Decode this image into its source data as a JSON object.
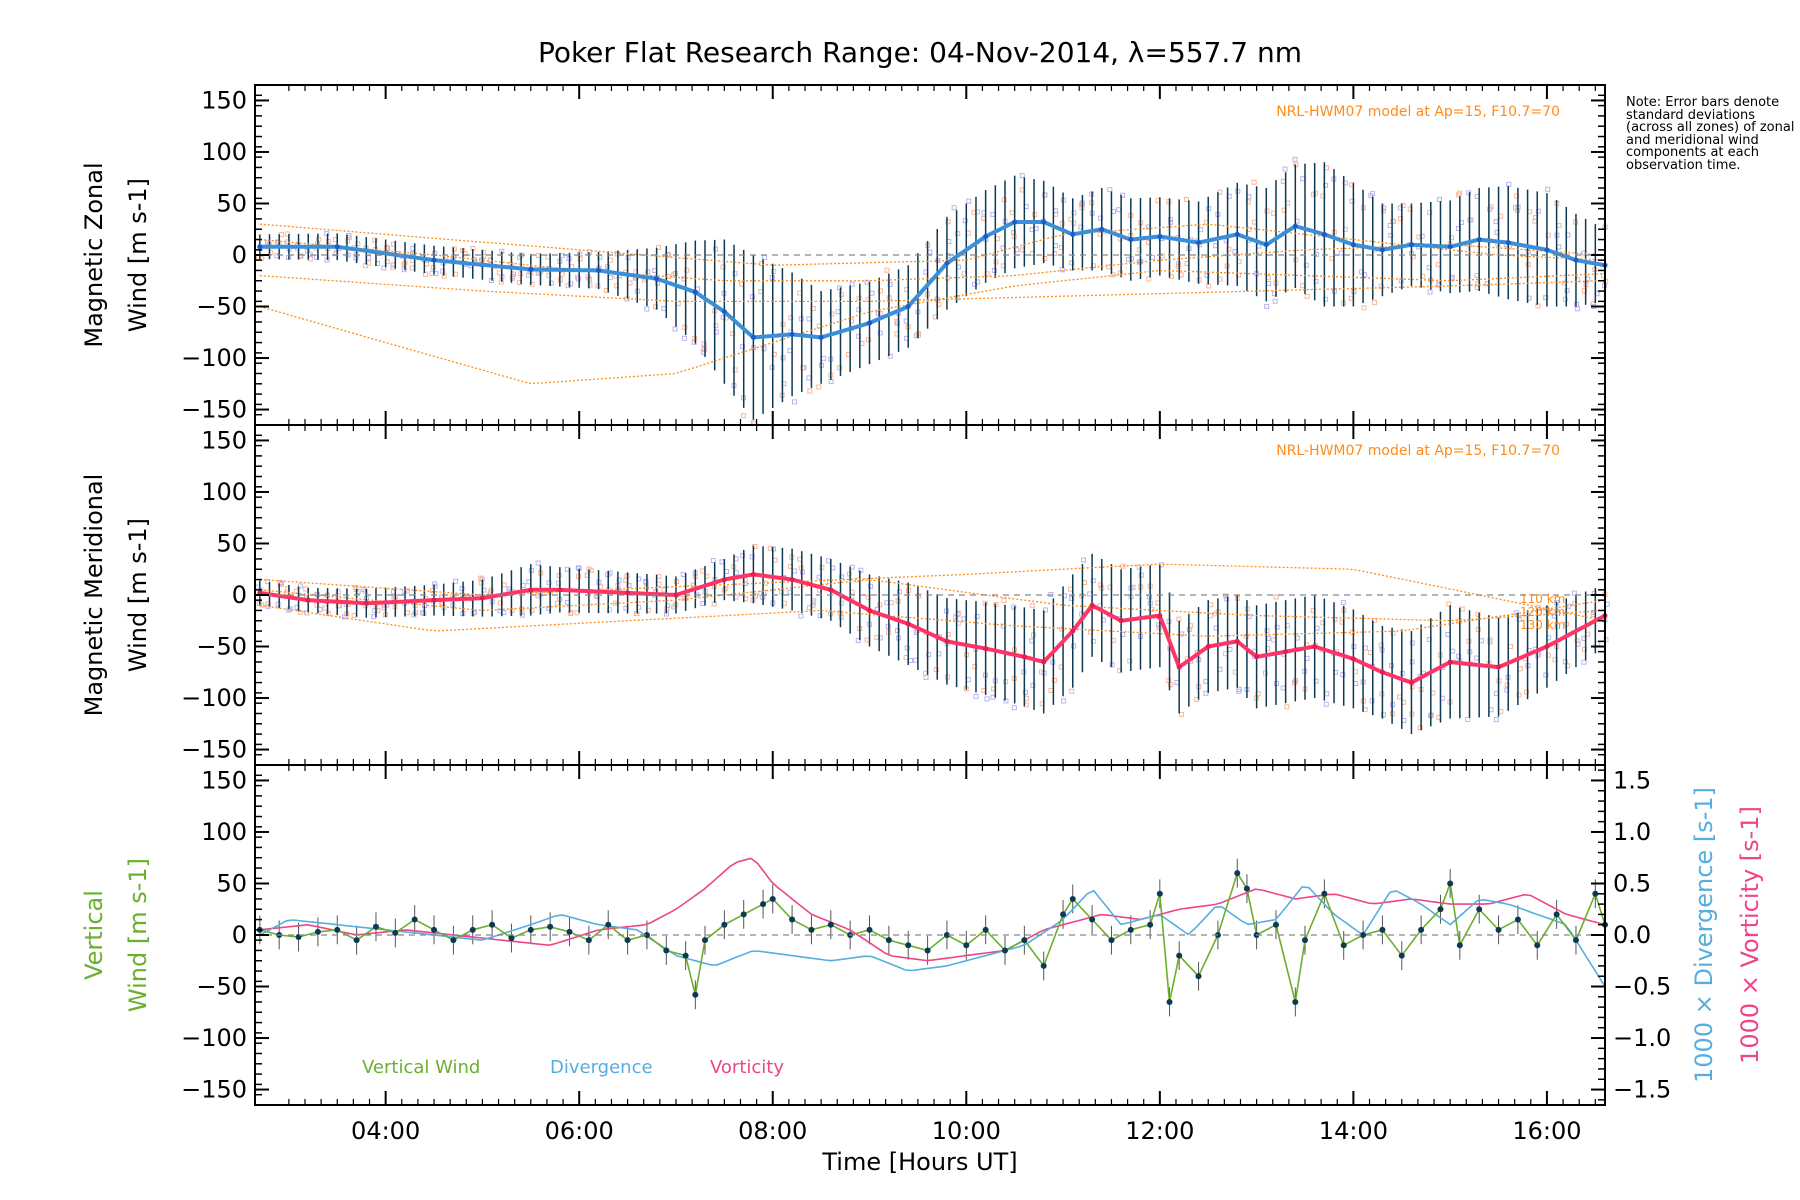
{
  "figure": {
    "title": "Poker Flat Research Range: 04-Nov-2014, λ=557.7 nm",
    "note": "Note: Error bars denote standard deviations (across all zones) of zonal and meridional wind components at each observation time.",
    "xlabel": "Time [Hours UT]",
    "x_ticks": [
      "04:00",
      "06:00",
      "08:00",
      "10:00",
      "12:00",
      "14:00",
      "16:00"
    ],
    "model_label": "NRL-HWM07 model at Ap=15, F10.7=70",
    "altitude_labels": [
      "110 km",
      "120 km",
      "130 km"
    ]
  },
  "colors": {
    "zonal": "#3a8fd8",
    "meridional": "#ff3366",
    "vertical": "#6ab02d",
    "divergence": "#56aee0",
    "vorticity": "#ee4488",
    "model": "#ff8c1a",
    "error_bar": "#0d3a52",
    "zone_scatter": "#b8b4f0",
    "zone_scatter_warm": "#f7b89a"
  },
  "chart_data": [
    {
      "type": "line",
      "panel": "zonal",
      "ylabel_line1": "Magnetic Zonal",
      "ylabel_line2": "Wind [m s-1]",
      "xlim": [
        2.65,
        16.6
      ],
      "ylim": [
        -165,
        165
      ],
      "y_ticks": [
        150,
        100,
        50,
        0,
        -50,
        -100,
        -150
      ],
      "series": [
        {
          "role": "mean",
          "x": [
            2.7,
            3.5,
            4.5,
            5.5,
            6.2,
            6.8,
            7.2,
            7.5,
            7.8,
            8.2,
            8.5,
            9.0,
            9.4,
            9.8,
            10.2,
            10.5,
            10.8,
            11.1,
            11.4,
            11.7,
            12.0,
            12.4,
            12.8,
            13.1,
            13.4,
            13.7,
            14.0,
            14.3,
            14.6,
            15.0,
            15.3,
            15.6,
            16.0,
            16.3,
            16.6
          ],
          "y": [
            8,
            8,
            -5,
            -14,
            -15,
            -23,
            -36,
            -55,
            -80,
            -77,
            -80,
            -66,
            -50,
            -8,
            18,
            32,
            32,
            20,
            25,
            15,
            18,
            12,
            20,
            10,
            28,
            20,
            10,
            5,
            10,
            8,
            15,
            12,
            5,
            -5,
            -10
          ],
          "spread": [
            12,
            13,
            14,
            15,
            18,
            30,
            50,
            70,
            80,
            60,
            45,
            40,
            40,
            45,
            45,
            45,
            40,
            35,
            40,
            40,
            38,
            40,
            50,
            55,
            60,
            70,
            60,
            45,
            40,
            45,
            50,
            55,
            55,
            45,
            35
          ]
        },
        {
          "role": "model",
          "name": "110 km",
          "x": [
            2.7,
            4.0,
            5.5,
            7.0,
            8.0,
            9.0,
            10.5,
            12.0,
            13.5,
            15.0,
            16.6
          ],
          "y": [
            -50,
            -85,
            -125,
            -115,
            -85,
            -55,
            -30,
            -15,
            -20,
            -25,
            -18
          ]
        },
        {
          "role": "model",
          "name": "120 km",
          "x": [
            2.7,
            4.5,
            6.0,
            7.5,
            9.0,
            10.5,
            12.0,
            13.5,
            15.0,
            16.6
          ],
          "y": [
            15,
            0,
            -15,
            -25,
            -25,
            -20,
            -5,
            5,
            10,
            0
          ]
        },
        {
          "role": "model",
          "name": "130 km",
          "x": [
            2.7,
            4.0,
            6.0,
            8.0,
            10.0,
            11.0,
            12.5,
            14.0,
            15.5,
            16.6
          ],
          "y": [
            30,
            20,
            5,
            -10,
            -5,
            20,
            30,
            15,
            0,
            -5
          ]
        },
        {
          "role": "model",
          "name": "",
          "x": [
            2.7,
            5.0,
            7.0,
            9.0,
            11.0,
            13.0,
            15.0,
            16.6
          ],
          "y": [
            -20,
            -35,
            -45,
            -45,
            -40,
            -35,
            -30,
            -25
          ]
        }
      ]
    },
    {
      "type": "line",
      "panel": "meridional",
      "ylabel_line1": "Magnetic Meridional",
      "ylabel_line2": "Wind [m s-1]",
      "xlim": [
        2.65,
        16.6
      ],
      "ylim": [
        -165,
        165
      ],
      "y_ticks": [
        150,
        100,
        50,
        0,
        -50,
        -100,
        -150
      ],
      "series": [
        {
          "role": "mean",
          "x": [
            2.7,
            3.2,
            3.8,
            4.5,
            5.0,
            5.5,
            5.8,
            6.5,
            7.0,
            7.5,
            7.8,
            8.2,
            8.6,
            9.0,
            9.4,
            9.8,
            10.2,
            10.6,
            10.8,
            11.1,
            11.3,
            11.6,
            12.0,
            12.2,
            12.5,
            12.8,
            13.0,
            13.3,
            13.6,
            14.0,
            14.3,
            14.6,
            15.0,
            15.5,
            16.0,
            16.6
          ],
          "y": [
            2,
            -5,
            -8,
            -5,
            -3,
            5,
            5,
            2,
            0,
            15,
            20,
            15,
            5,
            -15,
            -28,
            -45,
            -52,
            -60,
            -65,
            -35,
            -10,
            -25,
            -20,
            -70,
            -50,
            -45,
            -60,
            -55,
            -50,
            -62,
            -75,
            -85,
            -65,
            -70,
            -50,
            -20
          ],
          "spread": [
            12,
            12,
            14,
            15,
            18,
            25,
            22,
            20,
            18,
            20,
            28,
            30,
            30,
            35,
            40,
            42,
            45,
            48,
            50,
            55,
            50,
            50,
            50,
            45,
            45,
            45,
            50,
            50,
            50,
            48,
            45,
            50,
            55,
            48,
            40,
            30
          ]
        },
        {
          "role": "model",
          "name": "110 km",
          "x": [
            2.7,
            4.5,
            6.5,
            8.5,
            10.5,
            12.5,
            14.5,
            16.6
          ],
          "y": [
            -10,
            -35,
            -25,
            -15,
            -30,
            -40,
            -35,
            -5
          ]
        },
        {
          "role": "model",
          "name": "120 km",
          "x": [
            2.7,
            5.0,
            7.0,
            9.0,
            11.0,
            13.0,
            15.0,
            16.6
          ],
          "y": [
            5,
            -15,
            -5,
            15,
            -10,
            -20,
            -25,
            -15
          ]
        },
        {
          "role": "model",
          "name": "130 km",
          "x": [
            2.7,
            5.0,
            7.5,
            10.0,
            12.0,
            14.0,
            16.6
          ],
          "y": [
            15,
            0,
            10,
            20,
            30,
            25,
            -25
          ]
        }
      ]
    },
    {
      "type": "line",
      "panel": "vertical",
      "ylabel_line1": "Vertical",
      "ylabel_line2": "Wind [m s-1]",
      "ylabel_right_div": "1000 × Divergence [s-1]",
      "ylabel_right_vor": "1000 × Vorticity [s-1]",
      "xlim": [
        2.65,
        16.6
      ],
      "ylim": [
        -165,
        165
      ],
      "y_ticks": [
        150,
        100,
        50,
        0,
        -50,
        -100,
        -150
      ],
      "y2lim": [
        -1.65,
        1.65
      ],
      "y2_ticks": [
        "1.5",
        "1.0",
        "0.5",
        "0.0",
        "-0.5",
        "-1.0",
        "-1.5"
      ],
      "legend": [
        "Vertical Wind",
        "Divergence",
        "Vorticity"
      ],
      "series": [
        {
          "name": "Vertical Wind",
          "axis": "left",
          "x": [
            2.7,
            2.9,
            3.1,
            3.3,
            3.5,
            3.7,
            3.9,
            4.1,
            4.3,
            4.5,
            4.7,
            4.9,
            5.1,
            5.3,
            5.5,
            5.7,
            5.9,
            6.1,
            6.3,
            6.5,
            6.7,
            6.9,
            7.1,
            7.2,
            7.3,
            7.5,
            7.7,
            7.9,
            8.0,
            8.2,
            8.4,
            8.6,
            8.8,
            9.0,
            9.2,
            9.4,
            9.6,
            9.8,
            10.0,
            10.2,
            10.4,
            10.6,
            10.8,
            11.0,
            11.1,
            11.3,
            11.5,
            11.7,
            11.9,
            12.0,
            12.1,
            12.2,
            12.4,
            12.6,
            12.8,
            12.9,
            13.0,
            13.2,
            13.4,
            13.5,
            13.7,
            13.9,
            14.1,
            14.3,
            14.5,
            14.7,
            14.9,
            15.0,
            15.1,
            15.3,
            15.5,
            15.7,
            15.9,
            16.1,
            16.3,
            16.5,
            16.6
          ],
          "y": [
            5,
            0,
            -2,
            3,
            5,
            -5,
            8,
            2,
            15,
            5,
            -5,
            5,
            10,
            -3,
            5,
            8,
            3,
            -5,
            10,
            -5,
            0,
            -15,
            -20,
            -58,
            -5,
            10,
            20,
            30,
            35,
            15,
            5,
            10,
            0,
            5,
            -5,
            -10,
            -15,
            0,
            -10,
            5,
            -15,
            -5,
            -30,
            20,
            35,
            15,
            -5,
            5,
            10,
            40,
            -65,
            -20,
            -40,
            0,
            60,
            45,
            0,
            10,
            -65,
            -5,
            40,
            -10,
            0,
            5,
            -20,
            5,
            25,
            50,
            -10,
            25,
            5,
            15,
            -10,
            20,
            -5,
            40,
            10
          ]
        },
        {
          "name": "Divergence",
          "axis": "right",
          "x": [
            2.7,
            3.0,
            3.5,
            4.0,
            4.5,
            5.0,
            5.5,
            5.8,
            6.2,
            6.6,
            7.0,
            7.4,
            7.8,
            8.2,
            8.6,
            9.0,
            9.4,
            9.8,
            10.2,
            10.6,
            11.0,
            11.3,
            11.6,
            12.0,
            12.3,
            12.6,
            12.9,
            13.2,
            13.5,
            13.8,
            14.1,
            14.4,
            14.7,
            15.0,
            15.3,
            15.6,
            15.9,
            16.2,
            16.6
          ],
          "y": [
            0.0,
            0.15,
            0.1,
            0.05,
            0.0,
            -0.05,
            0.1,
            0.2,
            0.1,
            0.05,
            -0.2,
            -0.3,
            -0.15,
            -0.2,
            -0.25,
            -0.2,
            -0.35,
            -0.3,
            -0.2,
            -0.1,
            0.15,
            0.45,
            0.1,
            0.2,
            0.0,
            0.3,
            0.1,
            0.15,
            0.5,
            0.2,
            0.0,
            0.45,
            0.3,
            0.1,
            0.35,
            0.3,
            0.2,
            0.1,
            -0.5
          ]
        },
        {
          "name": "Vorticity",
          "axis": "right",
          "x": [
            2.7,
            3.2,
            3.7,
            4.2,
            4.7,
            5.2,
            5.7,
            6.2,
            6.7,
            7.0,
            7.3,
            7.6,
            7.8,
            8.0,
            8.4,
            8.8,
            9.2,
            9.6,
            10.0,
            10.4,
            10.8,
            11.0,
            11.4,
            11.8,
            12.2,
            12.6,
            13.0,
            13.4,
            13.8,
            14.2,
            14.6,
            15.0,
            15.4,
            15.8,
            16.2,
            16.6
          ],
          "y": [
            0.05,
            0.1,
            0.0,
            0.05,
            0.0,
            -0.05,
            -0.1,
            0.05,
            0.1,
            0.25,
            0.45,
            0.7,
            0.75,
            0.5,
            0.2,
            0.05,
            -0.2,
            -0.25,
            -0.2,
            -0.15,
            0.05,
            0.1,
            0.2,
            0.15,
            0.25,
            0.3,
            0.45,
            0.35,
            0.4,
            0.3,
            0.35,
            0.3,
            0.3,
            0.4,
            0.2,
            0.1
          ]
        }
      ]
    }
  ]
}
